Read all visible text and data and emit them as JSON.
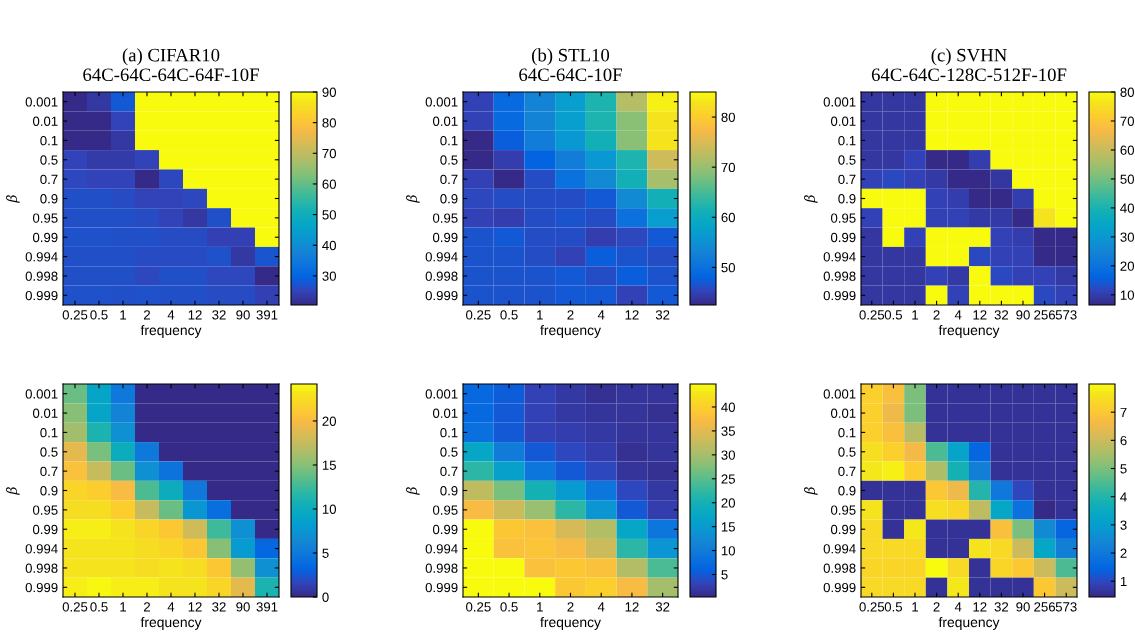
{
  "chart_data": [
    {
      "type": "heatmap",
      "title": "(a) CIFAR10",
      "subtitle": "64C-64C-64C-64F-10F",
      "xlabel": "frequency",
      "ylabel": "β",
      "categories": [
        "0.25",
        "0.5",
        "1",
        "2",
        "4",
        "12",
        "32",
        "90",
        "391"
      ],
      "y_categories": [
        "0.001",
        "0.01",
        "0.1",
        "0.5",
        "0.7",
        "0.9",
        "0.95",
        "0.99",
        "0.994",
        "0.998",
        "0.999"
      ],
      "clim": [
        20.5,
        90
      ],
      "cticks": [
        30,
        40,
        50,
        60,
        70,
        80,
        90
      ],
      "cells": [
        [
          20.5,
          23,
          28,
          90,
          90,
          90,
          90,
          90,
          90
        ],
        [
          20.5,
          20.5,
          25,
          90,
          90,
          90,
          90,
          90,
          90
        ],
        [
          20.5,
          20.5,
          23,
          90,
          90,
          90,
          90,
          90,
          90
        ],
        [
          25,
          23.5,
          23.5,
          25,
          90,
          90,
          90,
          90,
          90
        ],
        [
          25.5,
          25,
          25,
          20.5,
          25.5,
          90,
          90,
          90,
          90
        ],
        [
          26.5,
          26.5,
          26,
          25,
          25,
          25.5,
          90,
          90,
          90
        ],
        [
          26.5,
          26.5,
          26.5,
          26,
          25,
          23,
          26.5,
          90,
          90
        ],
        [
          27,
          27,
          26.5,
          26.5,
          26,
          26,
          24.5,
          24.5,
          90
        ],
        [
          26.5,
          26.5,
          26.5,
          26,
          26,
          26,
          27,
          23,
          27.5
        ],
        [
          26.5,
          26.5,
          26.5,
          25.5,
          26.5,
          26.5,
          25.5,
          25.5,
          20.5
        ],
        [
          27,
          27,
          26.5,
          27,
          26.5,
          26.5,
          26,
          26,
          24.5
        ]
      ]
    },
    {
      "type": "heatmap",
      "title": "(b) STL10",
      "subtitle": "64C-64C-10F",
      "xlabel": "frequency",
      "ylabel": "β",
      "categories": [
        "0.25",
        "0.5",
        "1",
        "2",
        "4",
        "12",
        "32"
      ],
      "y_categories": [
        "0.001",
        "0.01",
        "0.1",
        "0.5",
        "0.7",
        "0.9",
        "0.95",
        "0.99",
        "0.994",
        "0.998",
        "0.999"
      ],
      "clim": [
        42.5,
        85
      ],
      "cticks": [
        50,
        60,
        70,
        80
      ],
      "cells": [
        [
          45,
          49,
          53,
          57,
          62,
          72,
          84
        ],
        [
          45,
          49,
          53,
          57,
          62,
          69,
          83
        ],
        [
          42.5,
          47.5,
          52,
          56,
          61,
          69,
          83
        ],
        [
          42.5,
          44.5,
          48,
          52,
          56,
          62,
          74
        ],
        [
          45,
          42.5,
          46,
          50,
          54,
          61,
          71
        ],
        [
          45.5,
          46,
          46,
          46,
          47,
          54,
          61
        ],
        [
          45,
          44.5,
          46,
          46.5,
          46,
          50,
          57
        ],
        [
          46.5,
          47,
          46,
          46,
          44.5,
          45.5,
          47
        ],
        [
          46.5,
          46.5,
          46,
          45,
          47.5,
          46.5,
          46
        ],
        [
          46.5,
          46.5,
          46.5,
          47,
          46,
          47.5,
          46.5
        ],
        [
          46.5,
          46.5,
          46.5,
          47,
          47,
          45,
          47
        ]
      ]
    },
    {
      "type": "heatmap",
      "title": "(c) SVHN",
      "subtitle": "64C-64C-128C-512F-10F",
      "xlabel": "frequency",
      "ylabel": "β",
      "categories": [
        "0.25",
        "0.5",
        "1",
        "2",
        "4",
        "12",
        "32",
        "90",
        "256",
        "573"
      ],
      "y_categories": [
        "0.001",
        "0.01",
        "0.1",
        "0.5",
        "0.7",
        "0.9",
        "0.95",
        "0.99",
        "0.994",
        "0.998",
        "0.999"
      ],
      "clim": [
        6.5,
        80
      ],
      "cticks": [
        10,
        20,
        30,
        40,
        50,
        60,
        70,
        80
      ],
      "cells": [
        [
          9,
          9,
          9,
          80,
          80,
          80,
          80,
          80,
          80,
          80
        ],
        [
          9,
          9,
          9,
          80,
          80,
          80,
          80,
          80,
          80,
          80
        ],
        [
          9,
          9,
          9,
          80,
          80,
          80,
          80,
          80,
          80,
          80
        ],
        [
          9,
          9,
          11,
          6.5,
          6.5,
          10,
          80,
          80,
          80,
          80
        ],
        [
          11,
          12,
          11,
          9.5,
          6.5,
          6.5,
          9,
          80,
          80,
          80
        ],
        [
          80,
          80,
          80,
          11,
          10,
          6.5,
          6.5,
          10,
          80,
          80
        ],
        [
          11,
          80,
          80,
          11,
          11,
          9.5,
          9.5,
          6.5,
          76,
          80
        ],
        [
          9,
          80,
          11,
          80,
          80,
          80,
          11,
          10,
          6.5,
          6.5
        ],
        [
          9,
          9,
          9,
          80,
          80,
          12,
          11,
          11,
          6.5,
          6.5
        ],
        [
          9,
          9,
          9,
          11,
          9.5,
          80,
          12,
          11,
          11,
          9.5
        ],
        [
          9,
          9,
          9,
          80,
          11,
          80,
          80,
          80,
          12,
          11
        ]
      ]
    },
    {
      "type": "heatmap",
      "xlabel": "frequency",
      "ylabel": "β",
      "categories": [
        "0.25",
        "0.5",
        "1",
        "2",
        "4",
        "12",
        "32",
        "90",
        "391"
      ],
      "y_categories": [
        "0.001",
        "0.01",
        "0.1",
        "0.5",
        "0.7",
        "0.9",
        "0.95",
        "0.99",
        "0.994",
        "0.998",
        "0.999"
      ],
      "clim": [
        0,
        24.2
      ],
      "cticks": [
        0,
        5,
        10,
        15,
        20
      ],
      "cells": [
        [
          14,
          9,
          5,
          0,
          0,
          0,
          0,
          0,
          0
        ],
        [
          15,
          9,
          6,
          0,
          0,
          0,
          0,
          0,
          0
        ],
        [
          16,
          11,
          7,
          0,
          0,
          0,
          0,
          0,
          0
        ],
        [
          19,
          14.5,
          10,
          5,
          0,
          0,
          0,
          0,
          0
        ],
        [
          20.5,
          17.5,
          14,
          7,
          4.5,
          0,
          0,
          0,
          0
        ],
        [
          22,
          21.5,
          20,
          13,
          10,
          5,
          0,
          0,
          0
        ],
        [
          22.5,
          22.5,
          21.5,
          17.5,
          14,
          7.5,
          4,
          0,
          0
        ],
        [
          23.5,
          23.5,
          23,
          22,
          21,
          18,
          12.5,
          7,
          0
        ],
        [
          23,
          23,
          23,
          22.5,
          22,
          21,
          15,
          8,
          3.5
        ],
        [
          23,
          23,
          23,
          22.5,
          23,
          22.5,
          21,
          15.5,
          7
        ],
        [
          23.5,
          24,
          23.5,
          23.5,
          23,
          23,
          22,
          19,
          11
        ]
      ]
    },
    {
      "type": "heatmap",
      "xlabel": "frequency",
      "ylabel": "β",
      "categories": [
        "0.25",
        "0.5",
        "1",
        "2",
        "4",
        "12",
        "32"
      ],
      "y_categories": [
        "0.001",
        "0.01",
        "0.1",
        "0.5",
        "0.7",
        "0.9",
        "0.95",
        "0.99",
        "0.994",
        "0.998",
        "0.999"
      ],
      "clim": [
        0.3,
        44.8
      ],
      "cticks": [
        5,
        10,
        15,
        20,
        25,
        30,
        35,
        40
      ],
      "cells": [
        [
          7,
          5.5,
          3,
          2,
          1,
          1.5,
          1.5
        ],
        [
          7,
          5,
          3,
          2,
          1.5,
          1.5,
          1
        ],
        [
          8,
          5,
          3,
          2.5,
          2,
          1.5,
          1.5
        ],
        [
          17,
          10,
          5,
          3.5,
          2.5,
          1,
          1.5
        ],
        [
          22,
          16,
          9,
          5,
          3.5,
          1.5,
          1
        ],
        [
          32,
          27,
          20,
          15,
          9,
          3.5,
          2
        ],
        [
          37,
          33,
          29,
          22,
          14,
          5,
          2.5
        ],
        [
          44.8,
          39,
          38,
          34,
          31,
          17,
          9
        ],
        [
          44.8,
          38,
          38.5,
          37,
          33,
          22,
          14
        ],
        [
          44.8,
          44.8,
          38,
          39,
          38,
          31,
          24
        ],
        [
          44.8,
          44.8,
          44.8,
          39,
          40,
          37,
          30
        ]
      ]
    },
    {
      "type": "heatmap",
      "xlabel": "frequency",
      "ylabel": "β",
      "categories": [
        "0.25",
        "0.5",
        "1",
        "2",
        "4",
        "12",
        "32",
        "90",
        "256",
        "573"
      ],
      "y_categories": [
        "0.001",
        "0.01",
        "0.1",
        "0.5",
        "0.7",
        "0.9",
        "0.95",
        "0.99",
        "0.994",
        "0.998",
        "0.999"
      ],
      "clim": [
        0.44,
        8.0
      ],
      "cticks": [
        1,
        2,
        3,
        4,
        5,
        6,
        7
      ],
      "cells": [
        [
          7.2,
          6.8,
          5,
          0.6,
          0.6,
          0.6,
          0.6,
          0.6,
          0.6,
          0.6
        ],
        [
          7.2,
          6.5,
          5,
          0.6,
          0.6,
          0.6,
          0.6,
          0.6,
          0.6,
          0.6
        ],
        [
          7.2,
          6.8,
          5.7,
          0.6,
          0.6,
          0.6,
          0.6,
          0.6,
          0.6,
          0.6
        ],
        [
          7.5,
          7.2,
          6.6,
          4.5,
          3.2,
          1.5,
          0.6,
          0.6,
          0.6,
          0.6
        ],
        [
          7.7,
          7.8,
          7.1,
          5.6,
          3.8,
          2.2,
          0.6,
          0.6,
          0.6,
          0.6
        ],
        [
          0.6,
          0.6,
          0.6,
          7.0,
          6.5,
          4.0,
          2.0,
          1.0,
          0.6,
          0.6
        ],
        [
          7.6,
          0.6,
          0.6,
          7.5,
          7.3,
          5.8,
          3.3,
          1.8,
          0.44,
          0.6
        ],
        [
          7.4,
          0.6,
          7.7,
          0.6,
          0.6,
          0.6,
          6.8,
          5.0,
          2.5,
          1.5
        ],
        [
          7.4,
          7.4,
          7.4,
          0.6,
          0.6,
          7.6,
          7.4,
          6.0,
          3.3,
          2.2
        ],
        [
          7.3,
          7.3,
          7.3,
          8.0,
          7.4,
          0.6,
          7.3,
          7.0,
          6.0,
          4.5
        ],
        [
          7.4,
          7.4,
          7.4,
          0.6,
          7.7,
          0.6,
          0.6,
          0.6,
          7.0,
          6.0
        ]
      ]
    }
  ]
}
